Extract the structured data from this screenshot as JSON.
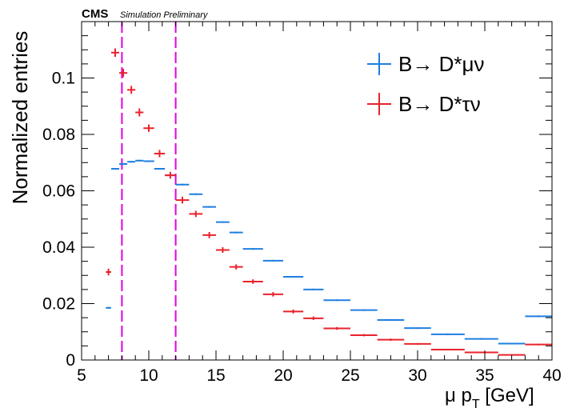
{
  "header": {
    "experiment": "CMS",
    "subtitle": "Simulation Preliminary"
  },
  "chart_data": {
    "type": "scatter",
    "xlabel_main": "μ p",
    "xlabel_sub": "T",
    "xlabel_unit": " [GeV]",
    "ylabel": "Normalized entries",
    "xlim": [
      5,
      40
    ],
    "ylim": [
      0,
      0.12
    ],
    "x_ticks": [
      5,
      10,
      15,
      20,
      25,
      30,
      35,
      40
    ],
    "y_ticks": [
      0,
      0.02,
      0.04,
      0.06,
      0.08,
      0.1
    ],
    "y_tick_labels": [
      "0",
      "0.02",
      "0.04",
      "0.06",
      "0.08",
      "0.1"
    ],
    "vertical_lines": [
      8,
      12
    ],
    "vertical_line_color": "#e100e1",
    "legend_placement": "top-right",
    "series": [
      {
        "name": "B→ D*μν",
        "color": "#1f7fe0",
        "points": [
          {
            "x0": 6.8,
            "x1": 7.2,
            "y": 0.0185,
            "err": 0.0003
          },
          {
            "x0": 7.2,
            "x1": 7.8,
            "y": 0.0678,
            "err": 0.0003
          },
          {
            "x0": 7.8,
            "x1": 8.4,
            "y": 0.0695,
            "err": 0.0003
          },
          {
            "x0": 8.4,
            "x1": 9.0,
            "y": 0.0703,
            "err": 0.0003
          },
          {
            "x0": 9.0,
            "x1": 9.6,
            "y": 0.0707,
            "err": 0.0003
          },
          {
            "x0": 9.6,
            "x1": 10.4,
            "y": 0.0705,
            "err": 0.0003
          },
          {
            "x0": 10.4,
            "x1": 11.2,
            "y": 0.0678,
            "err": 0.0003
          },
          {
            "x0": 11.2,
            "x1": 12.0,
            "y": 0.0655,
            "err": 0.0003
          },
          {
            "x0": 12.0,
            "x1": 13.0,
            "y": 0.0622,
            "err": 0.0003
          },
          {
            "x0": 13.0,
            "x1": 14.0,
            "y": 0.0588,
            "err": 0.0003
          },
          {
            "x0": 14.0,
            "x1": 15.0,
            "y": 0.0543,
            "err": 0.0003
          },
          {
            "x0": 15.0,
            "x1": 16.0,
            "y": 0.0489,
            "err": 0.0003
          },
          {
            "x0": 16.0,
            "x1": 17.0,
            "y": 0.0452,
            "err": 0.0003
          },
          {
            "x0": 17.0,
            "x1": 18.5,
            "y": 0.0394,
            "err": 0.0003
          },
          {
            "x0": 18.5,
            "x1": 20.0,
            "y": 0.0352,
            "err": 0.0003
          },
          {
            "x0": 20.0,
            "x1": 21.5,
            "y": 0.0295,
            "err": 0.0003
          },
          {
            "x0": 21.5,
            "x1": 23.0,
            "y": 0.025,
            "err": 0.0003
          },
          {
            "x0": 23.0,
            "x1": 25.0,
            "y": 0.0212,
            "err": 0.0003
          },
          {
            "x0": 25.0,
            "x1": 27.0,
            "y": 0.0177,
            "err": 0.0003
          },
          {
            "x0": 27.0,
            "x1": 29.0,
            "y": 0.0142,
            "err": 0.0003
          },
          {
            "x0": 29.0,
            "x1": 31.0,
            "y": 0.0113,
            "err": 0.0003
          },
          {
            "x0": 31.0,
            "x1": 33.5,
            "y": 0.0091,
            "err": 0.0003
          },
          {
            "x0": 33.5,
            "x1": 36.0,
            "y": 0.0075,
            "err": 0.0003
          },
          {
            "x0": 36.0,
            "x1": 38.0,
            "y": 0.0058,
            "err": 0.0003
          },
          {
            "x0": 38.0,
            "x1": 40.0,
            "y": 0.0155,
            "err": 0.0003
          }
        ]
      },
      {
        "name": "B→ D*τν",
        "color": "#e8232b",
        "points": [
          {
            "x0": 6.8,
            "x1": 7.2,
            "y": 0.0312,
            "err": 0.0012
          },
          {
            "x0": 7.2,
            "x1": 7.8,
            "y": 0.109,
            "err": 0.0015
          },
          {
            "x0": 7.8,
            "x1": 8.4,
            "y": 0.1018,
            "err": 0.0015
          },
          {
            "x0": 8.4,
            "x1": 9.0,
            "y": 0.0958,
            "err": 0.0014
          },
          {
            "x0": 9.0,
            "x1": 9.6,
            "y": 0.0878,
            "err": 0.0014
          },
          {
            "x0": 9.6,
            "x1": 10.4,
            "y": 0.0822,
            "err": 0.0013
          },
          {
            "x0": 10.4,
            "x1": 11.2,
            "y": 0.0732,
            "err": 0.0013
          },
          {
            "x0": 11.2,
            "x1": 12.0,
            "y": 0.0655,
            "err": 0.0012
          },
          {
            "x0": 12.0,
            "x1": 13.0,
            "y": 0.0567,
            "err": 0.0012
          },
          {
            "x0": 13.0,
            "x1": 14.0,
            "y": 0.0518,
            "err": 0.0011
          },
          {
            "x0": 14.0,
            "x1": 15.0,
            "y": 0.0443,
            "err": 0.0011
          },
          {
            "x0": 15.0,
            "x1": 16.0,
            "y": 0.039,
            "err": 0.001
          },
          {
            "x0": 16.0,
            "x1": 17.0,
            "y": 0.033,
            "err": 0.0009
          },
          {
            "x0": 17.0,
            "x1": 18.5,
            "y": 0.0278,
            "err": 0.0008
          },
          {
            "x0": 18.5,
            "x1": 20.0,
            "y": 0.0233,
            "err": 0.0008
          },
          {
            "x0": 20.0,
            "x1": 21.5,
            "y": 0.0172,
            "err": 0.0007
          },
          {
            "x0": 21.5,
            "x1": 23.0,
            "y": 0.0148,
            "err": 0.0006
          },
          {
            "x0": 23.0,
            "x1": 25.0,
            "y": 0.0112,
            "err": 0.0005
          },
          {
            "x0": 25.0,
            "x1": 27.0,
            "y": 0.0088,
            "err": 0.0004
          },
          {
            "x0": 27.0,
            "x1": 29.0,
            "y": 0.0072,
            "err": 0.0004
          },
          {
            "x0": 29.0,
            "x1": 31.0,
            "y": 0.0057,
            "err": 0.0003
          },
          {
            "x0": 31.0,
            "x1": 33.5,
            "y": 0.0037,
            "err": 0.0003
          },
          {
            "x0": 33.5,
            "x1": 36.0,
            "y": 0.0027,
            "err": 0.0003
          },
          {
            "x0": 36.0,
            "x1": 38.0,
            "y": 0.0018,
            "err": 0.0002
          },
          {
            "x0": 38.0,
            "x1": 40.0,
            "y": 0.0055,
            "err": 0.0003
          }
        ]
      }
    ]
  }
}
